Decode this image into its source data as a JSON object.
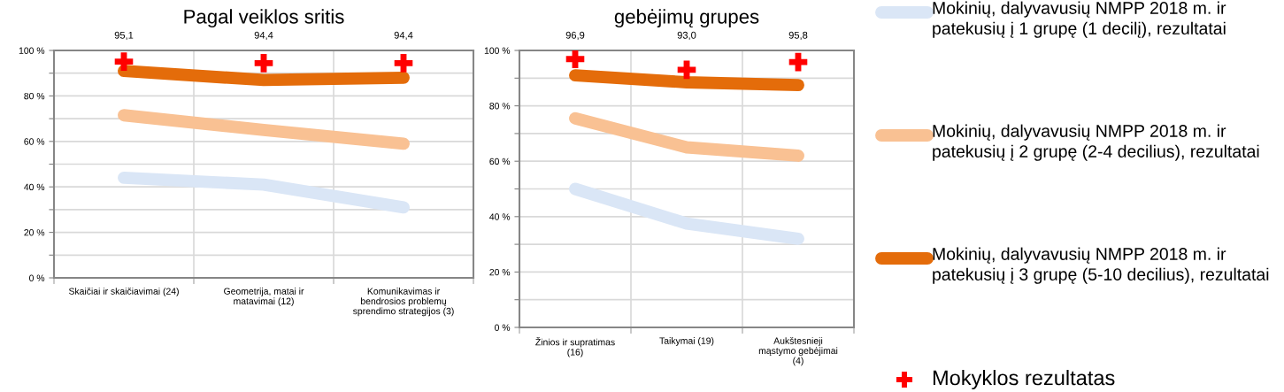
{
  "chart_data": [
    {
      "type": "line",
      "title": "Pagal veiklos sritis",
      "categories": [
        "Skaičiai ir skaičiavimai (24)",
        "Geometrija, matai ir matavimai (12)",
        "Komunikavimas ir bendrosios problemų sprendimo strategijos (3)"
      ],
      "ylim": [
        0,
        100
      ],
      "yticks": [
        {
          "value": 0,
          "label": "0 %"
        },
        {
          "value": 10,
          "label": null
        },
        {
          "value": 20,
          "label": "20 %"
        },
        {
          "value": 30,
          "label": null
        },
        {
          "value": 40,
          "label": "40 %"
        },
        {
          "value": 50,
          "label": null
        },
        {
          "value": 60,
          "label": "60 %"
        },
        {
          "value": 70,
          "label": null
        },
        {
          "value": 80,
          "label": "80 %"
        },
        {
          "value": 90,
          "label": null
        },
        {
          "value": 100,
          "label": "100 %"
        }
      ],
      "grid": true,
      "legend": "right",
      "series": [
        {
          "name": "Mokinių, dalyvavusių NMPP 2018 m. ir patekusių į 1 grupę (1 decilį), rezultatai",
          "color": "#dae6f6",
          "values": [
            44,
            41,
            31
          ]
        },
        {
          "name": "Mokinių, dalyvavusių NMPP 2018 m. ir patekusių į 2 grupę (2-4 decilius), rezultatai",
          "color": "#f9c193",
          "values": [
            71.5,
            65,
            59
          ]
        },
        {
          "name": "Mokinių, dalyvavusių NMPP 2018 m. ir patekusių į 3 grupę (5-10 decilius), rezultatai",
          "color": "#e46c0a",
          "values": [
            91,
            87,
            88
          ]
        },
        {
          "name": "Mokyklos rezultatas",
          "type": "scatter",
          "marker": "cross",
          "color": "#ff0000",
          "values": [
            95.1,
            94.4,
            94.4
          ],
          "value_labels": [
            "95,1",
            "94,4",
            "94,4"
          ]
        }
      ]
    },
    {
      "type": "line",
      "title": "gebėjimų grupes",
      "categories": [
        "Žinios ir supratimas (16)",
        "Taikymai (19)",
        "Aukštesnieji mąstymo gebėjimai (4)"
      ],
      "ylim": [
        0,
        100
      ],
      "yticks": [
        {
          "value": 0,
          "label": "0 %"
        },
        {
          "value": 10,
          "label": null
        },
        {
          "value": 20,
          "label": "20 %"
        },
        {
          "value": 30,
          "label": null
        },
        {
          "value": 40,
          "label": "40 %"
        },
        {
          "value": 50,
          "label": null
        },
        {
          "value": 60,
          "label": "60 %"
        },
        {
          "value": 70,
          "label": null
        },
        {
          "value": 80,
          "label": "80 %"
        },
        {
          "value": 90,
          "label": null
        },
        {
          "value": 100,
          "label": "100 %"
        }
      ],
      "grid": true,
      "series": [
        {
          "color": "#dae6f6",
          "values": [
            50,
            37.5,
            32
          ]
        },
        {
          "color": "#f9c193",
          "values": [
            75.5,
            65,
            62
          ]
        },
        {
          "color": "#e46c0a",
          "values": [
            91,
            88.5,
            87.5
          ]
        },
        {
          "type": "scatter",
          "marker": "cross",
          "color": "#ff0000",
          "values": [
            96.9,
            93.0,
            95.8
          ],
          "value_labels": [
            "96,9",
            "93,0",
            "95,8"
          ]
        }
      ]
    }
  ]
}
